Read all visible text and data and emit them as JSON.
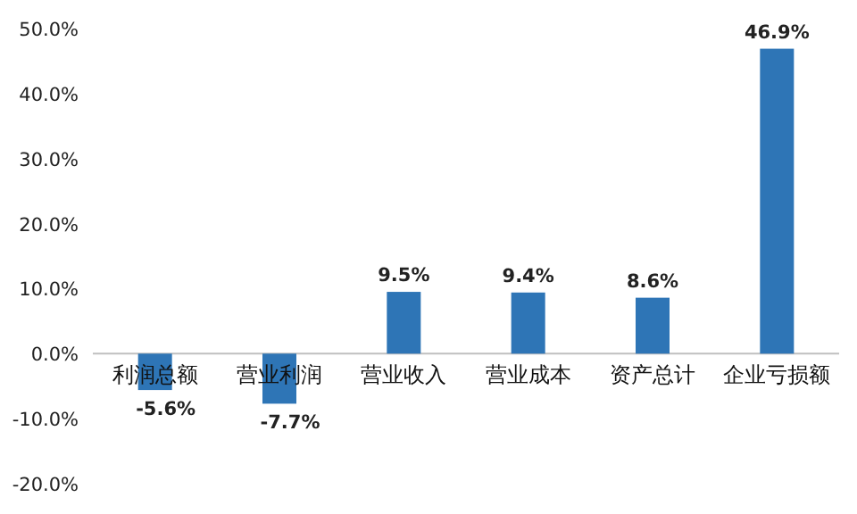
{
  "chart_data": {
    "type": "bar",
    "categories": [
      "利润总额",
      "营业利润",
      "营业收入",
      "营业成本",
      "资产总计",
      "企业亏损额"
    ],
    "values": [
      -5.6,
      -7.7,
      9.5,
      9.4,
      8.6,
      46.9
    ],
    "value_labels": [
      "-5.6%",
      "-7.7%",
      "9.5%",
      "9.4%",
      "8.6%",
      "46.9%"
    ],
    "color": "#2e75b6",
    "ylim": [
      -20,
      50
    ],
    "yticks": [
      {
        "value": -20,
        "label": "-20.0%"
      },
      {
        "value": -10,
        "label": "-10.0%"
      },
      {
        "value": 0,
        "label": "0.0%"
      },
      {
        "value": 10,
        "label": "10.0%"
      },
      {
        "value": 20,
        "label": "20.0%"
      },
      {
        "value": 30,
        "label": "30.0%"
      },
      {
        "value": 40,
        "label": "40.0%"
      },
      {
        "value": 50,
        "label": "50.0%"
      }
    ],
    "grid": false
  }
}
